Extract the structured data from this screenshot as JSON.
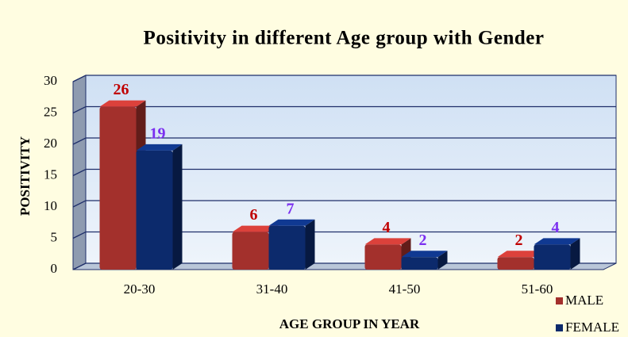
{
  "chart_data": {
    "type": "bar3d",
    "title": "Positivity in different Age group with Gender",
    "x_label": "AGE GROUP IN YEAR",
    "y_label": "POSITIVITY",
    "categories": [
      "20-30",
      "31-40",
      "41-50",
      "51-60"
    ],
    "series": [
      {
        "name": "MALE",
        "color": "#a3302c",
        "label_color": "#c00000",
        "values": [
          26,
          6,
          4,
          2
        ]
      },
      {
        "name": "FEMALE",
        "color": "#0c2a6c",
        "label_color": "#7b2ff0",
        "values": [
          19,
          7,
          2,
          4
        ]
      }
    ],
    "ylim": [
      0,
      30
    ],
    "yticks": [
      0,
      5,
      10,
      15,
      20,
      25,
      30
    ],
    "grid": true
  }
}
